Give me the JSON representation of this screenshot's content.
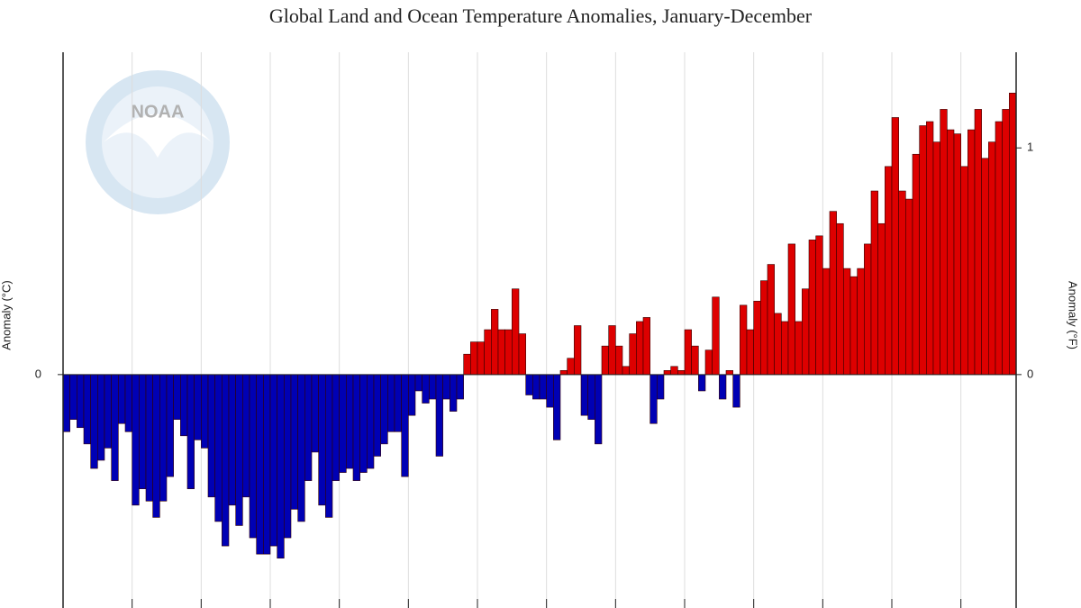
{
  "chart_data": {
    "type": "bar",
    "title": "Global Land and Ocean Temperature Anomalies, January-December",
    "y_label": "Anomaly (°C)",
    "y2_label": "Anomaly (°F)",
    "logo_text": "NOAA",
    "positive_color": "#dd0000",
    "negative_color": "#0000b4",
    "ylim": [
      -0.55,
      0.79
    ],
    "yticks": [
      0
    ],
    "y2lim": [
      -0.99,
      1.422
    ],
    "y2ticks": [
      0,
      1
    ],
    "grid": true,
    "values": [
      -0.14,
      -0.11,
      -0.13,
      -0.17,
      -0.23,
      -0.21,
      -0.18,
      -0.26,
      -0.12,
      -0.14,
      -0.32,
      -0.28,
      -0.31,
      -0.35,
      -0.31,
      -0.25,
      -0.11,
      -0.15,
      -0.28,
      -0.16,
      -0.18,
      -0.3,
      -0.36,
      -0.42,
      -0.32,
      -0.37,
      -0.3,
      -0.4,
      -0.44,
      -0.44,
      -0.42,
      -0.45,
      -0.4,
      -0.33,
      -0.36,
      -0.26,
      -0.19,
      -0.32,
      -0.35,
      -0.26,
      -0.24,
      -0.23,
      -0.26,
      -0.24,
      -0.23,
      -0.2,
      -0.17,
      -0.14,
      -0.14,
      -0.25,
      -0.1,
      -0.04,
      -0.07,
      -0.06,
      -0.2,
      -0.06,
      -0.09,
      -0.06,
      0.05,
      0.08,
      0.08,
      0.11,
      0.16,
      0.11,
      0.11,
      0.21,
      0.1,
      -0.05,
      -0.06,
      -0.06,
      -0.08,
      -0.16,
      0.01,
      0.04,
      0.12,
      -0.1,
      -0.11,
      -0.17,
      0.07,
      0.12,
      0.07,
      0.02,
      0.1,
      0.13,
      0.14,
      -0.12,
      -0.06,
      0.01,
      0.02,
      0.01,
      0.11,
      0.07,
      -0.04,
      0.06,
      0.19,
      -0.06,
      0.01,
      -0.08,
      0.17,
      0.11,
      0.18,
      0.23,
      0.27,
      0.15,
      0.13,
      0.32,
      0.13,
      0.21,
      0.33,
      0.34,
      0.26,
      0.4,
      0.37,
      0.26,
      0.24,
      0.26,
      0.32,
      0.45,
      0.37,
      0.51,
      0.63,
      0.45,
      0.43,
      0.54,
      0.61,
      0.62,
      0.57,
      0.65,
      0.6,
      0.59,
      0.51,
      0.6,
      0.65,
      0.53,
      0.57,
      0.62,
      0.65,
      0.69
    ]
  }
}
